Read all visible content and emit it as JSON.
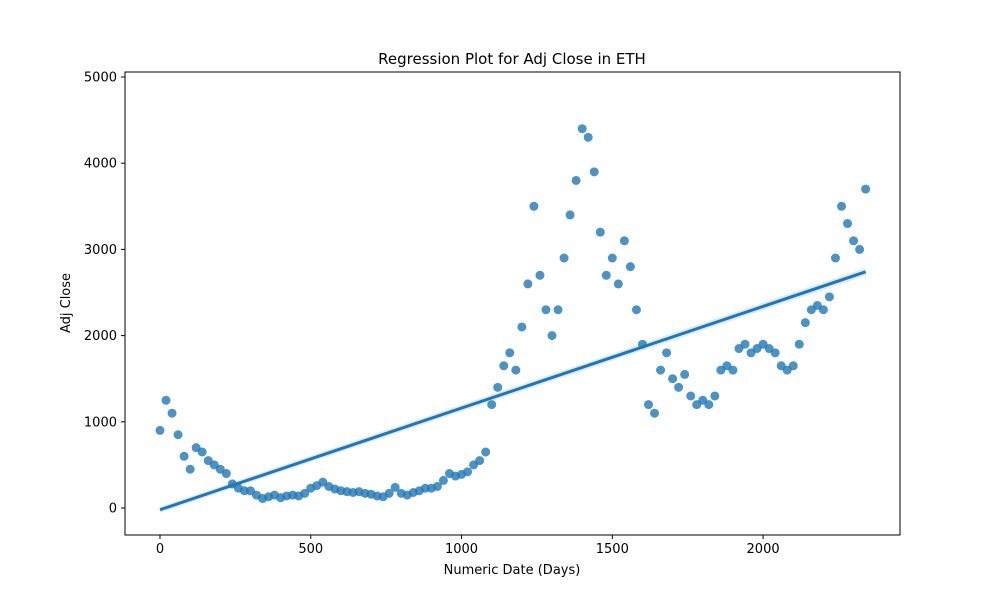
{
  "chart_data": {
    "type": "scatter",
    "title": "Regression Plot for Adj Close in ETH",
    "xlabel": "Numeric Date (Days)",
    "ylabel": "Adj Close",
    "xlim": [
      -116,
      2454
    ],
    "ylim": [
      -313,
      5058
    ],
    "xticks": [
      0,
      500,
      1000,
      1500,
      2000
    ],
    "yticks": [
      0,
      1000,
      2000,
      3000,
      4000,
      5000
    ],
    "color": "#1f77b4",
    "x": [
      0,
      20,
      40,
      60,
      80,
      100,
      120,
      140,
      160,
      180,
      200,
      220,
      240,
      260,
      280,
      300,
      320,
      340,
      360,
      380,
      400,
      420,
      440,
      460,
      480,
      500,
      520,
      540,
      560,
      580,
      600,
      620,
      640,
      660,
      680,
      700,
      720,
      740,
      760,
      780,
      800,
      820,
      840,
      860,
      880,
      900,
      920,
      940,
      960,
      980,
      1000,
      1020,
      1040,
      1060,
      1080,
      1100,
      1120,
      1140,
      1160,
      1180,
      1200,
      1220,
      1240,
      1260,
      1280,
      1300,
      1320,
      1340,
      1360,
      1380,
      1400,
      1420,
      1440,
      1460,
      1480,
      1500,
      1520,
      1540,
      1560,
      1580,
      1600,
      1620,
      1640,
      1660,
      1680,
      1700,
      1720,
      1740,
      1760,
      1780,
      1800,
      1820,
      1840,
      1860,
      1880,
      1900,
      1920,
      1940,
      1960,
      1980,
      2000,
      2020,
      2040,
      2060,
      2080,
      2100,
      2120,
      2140,
      2160,
      2180,
      2200,
      2220,
      2240,
      2260,
      2280,
      2300,
      2320,
      2340
    ],
    "values": [
      900,
      1250,
      1100,
      850,
      600,
      450,
      700,
      650,
      550,
      500,
      450,
      400,
      280,
      230,
      200,
      200,
      150,
      110,
      130,
      150,
      120,
      140,
      150,
      140,
      170,
      230,
      260,
      300,
      250,
      220,
      200,
      190,
      180,
      190,
      170,
      160,
      140,
      130,
      170,
      240,
      170,
      150,
      180,
      200,
      230,
      230,
      250,
      320,
      400,
      370,
      390,
      420,
      500,
      550,
      650,
      1200,
      1400,
      1650,
      1800,
      1600,
      2100,
      2600,
      3500,
      2700,
      2300,
      2000,
      2300,
      2900,
      3400,
      3800,
      4400,
      4300,
      3900,
      3200,
      2700,
      2900,
      2600,
      3100,
      2800,
      2300,
      1900,
      1200,
      1100,
      1600,
      1800,
      1500,
      1400,
      1550,
      1300,
      1200,
      1250,
      1200,
      1300,
      1600,
      1650,
      1600,
      1850,
      1900,
      1800,
      1850,
      1900,
      1850,
      1800,
      1650,
      1600,
      1650,
      1900,
      2150,
      2300,
      2350,
      2300,
      2450,
      2900,
      3500,
      3300,
      3100,
      3000,
      3700
    ],
    "regression": {
      "x": [
        0,
        2340
      ],
      "values": [
        -20,
        2740
      ],
      "color": "#1f77b4"
    }
  }
}
